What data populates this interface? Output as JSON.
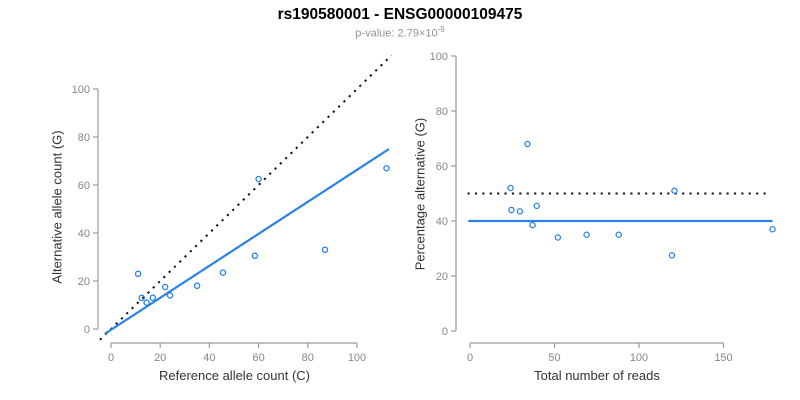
{
  "header": {
    "title": "rs190580001 - ENSG00000109475",
    "subtitle_prefix": "p-value: 2.79×10",
    "subtitle_exponent": "-9"
  },
  "colors": {
    "title_black": "#000000",
    "subtitle_gray": "#929292",
    "axis_title_dark": "#333333",
    "tick_label_gray": "#878787",
    "axis_line_gray": "#9a9a9a",
    "point_blue": "#2b82e6",
    "line_blue": "#2b82e6",
    "dashed_black": "#141414"
  },
  "chart_data": [
    {
      "type": "scatter",
      "title": "",
      "xlabel": "Reference allele count (C)",
      "ylabel": "Alternative allele count (G)",
      "xticks": [
        0,
        20,
        40,
        60,
        80,
        100
      ],
      "yticks": [
        0,
        20,
        40,
        60,
        80,
        100
      ],
      "xlim": [
        -5,
        114
      ],
      "ylim": [
        -6,
        114
      ],
      "grid": false,
      "legend": null,
      "points": [
        [
          11,
          23
        ],
        [
          12.5,
          13
        ],
        [
          14.5,
          11
        ],
        [
          17,
          13
        ],
        [
          22,
          17.5
        ],
        [
          24,
          14
        ],
        [
          35,
          18
        ],
        [
          45.5,
          23.5
        ],
        [
          58.5,
          30.5
        ],
        [
          60,
          62.5
        ],
        [
          87,
          33
        ],
        [
          112,
          67
        ]
      ],
      "lines": [
        {
          "name": "identity-line",
          "style": "dotted",
          "color": "black",
          "x1": -4.5,
          "y1": -4.5,
          "x2": 114,
          "y2": 114
        },
        {
          "name": "fit-line",
          "style": "solid",
          "color": "blue",
          "x1": -2.5,
          "y1": -2,
          "x2": 113,
          "y2": 75
        }
      ]
    },
    {
      "type": "scatter",
      "title": "",
      "xlabel": "Total number of reads",
      "ylabel": "Percentage alternative (G)",
      "xticks": [
        0,
        50,
        100,
        150
      ],
      "yticks": [
        0,
        20,
        40,
        60,
        80,
        100
      ],
      "xlim": [
        -7,
        184
      ],
      "ylim": [
        -6,
        104
      ],
      "grid": false,
      "legend": null,
      "points": [
        [
          34,
          68
        ],
        [
          24,
          52
        ],
        [
          24.5,
          44
        ],
        [
          29.5,
          43.5
        ],
        [
          39.5,
          45.5
        ],
        [
          37,
          38.5
        ],
        [
          52,
          34
        ],
        [
          69,
          35
        ],
        [
          88,
          35
        ],
        [
          121,
          51
        ],
        [
          119.5,
          27.5
        ],
        [
          179,
          37
        ]
      ],
      "lines": [
        {
          "name": "null-line",
          "style": "dotted",
          "color": "black",
          "x1": -1.5,
          "y1": 50,
          "x2": 176,
          "y2": 50
        },
        {
          "name": "mean-line",
          "style": "solid",
          "color": "blue",
          "x1": -1,
          "y1": 40,
          "x2": 179,
          "y2": 40
        }
      ]
    }
  ]
}
